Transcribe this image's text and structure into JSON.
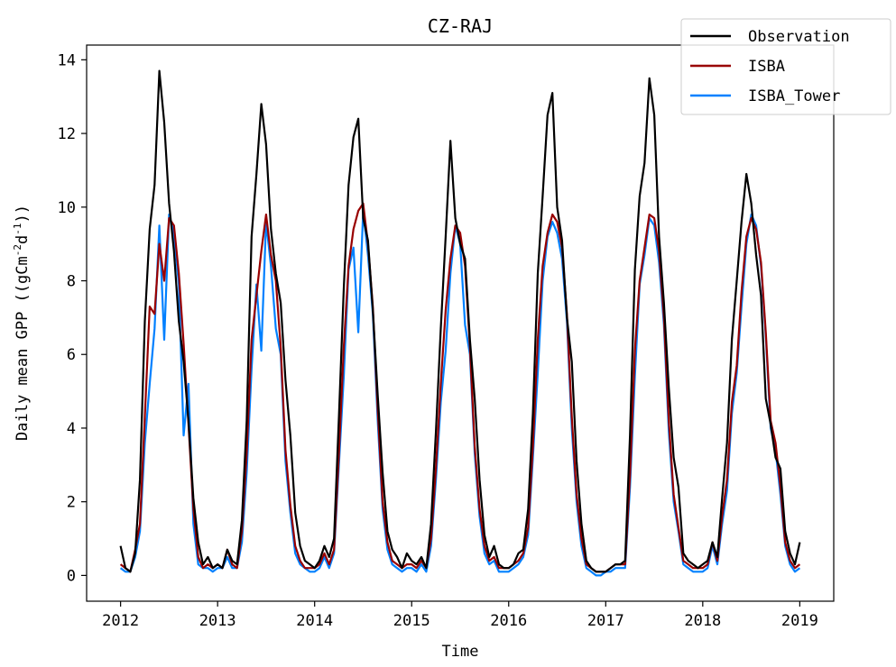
{
  "chart_data": {
    "type": "line",
    "title": "CZ-RAJ",
    "xlabel": "Time",
    "ylabel": "Daily mean GPP ((gCm",
    "ylabel_unit_parts": [
      "-2",
      "d",
      "-1",
      "))"
    ],
    "xlim": [
      2011.65,
      2019.35
    ],
    "ylim": [
      -0.7,
      14.4
    ],
    "x_ticks": [
      "2012",
      "2013",
      "2014",
      "2015",
      "2016",
      "2017",
      "2018",
      "2019"
    ],
    "y_ticks": [
      "0",
      "2",
      "4",
      "6",
      "8",
      "10",
      "12",
      "14"
    ],
    "legend_position": "top-right",
    "series": [
      {
        "name": "Observation",
        "color": "#000000",
        "x": [
          2012.0,
          2012.05,
          2012.1,
          2012.15,
          2012.2,
          2012.25,
          2012.3,
          2012.35,
          2012.4,
          2012.45,
          2012.5,
          2012.55,
          2012.6,
          2012.65,
          2012.7,
          2012.75,
          2012.8,
          2012.85,
          2012.9,
          2012.95,
          2013.0,
          2013.05,
          2013.1,
          2013.15,
          2013.2,
          2013.25,
          2013.3,
          2013.35,
          2013.4,
          2013.45,
          2013.5,
          2013.55,
          2013.6,
          2013.65,
          2013.7,
          2013.75,
          2013.8,
          2013.85,
          2013.9,
          2013.95,
          2014.0,
          2014.05,
          2014.1,
          2014.15,
          2014.2,
          2014.25,
          2014.3,
          2014.35,
          2014.4,
          2014.45,
          2014.5,
          2014.55,
          2014.6,
          2014.65,
          2014.7,
          2014.75,
          2014.8,
          2014.85,
          2014.9,
          2014.95,
          2015.0,
          2015.05,
          2015.1,
          2015.15,
          2015.2,
          2015.25,
          2015.3,
          2015.35,
          2015.4,
          2015.45,
          2015.5,
          2015.55,
          2015.6,
          2015.65,
          2015.7,
          2015.75,
          2015.8,
          2015.85,
          2015.9,
          2015.95,
          2016.0,
          2016.05,
          2016.1,
          2016.15,
          2016.2,
          2016.25,
          2016.3,
          2016.35,
          2016.4,
          2016.45,
          2016.5,
          2016.55,
          2016.6,
          2016.65,
          2016.7,
          2016.75,
          2016.8,
          2016.85,
          2016.9,
          2016.95,
          2017.0,
          2017.05,
          2017.1,
          2017.15,
          2017.2,
          2017.25,
          2017.3,
          2017.35,
          2017.4,
          2017.45,
          2017.5,
          2017.55,
          2017.6,
          2017.65,
          2017.7,
          2017.75,
          2017.8,
          2017.85,
          2017.9,
          2017.95,
          2018.0,
          2018.05,
          2018.1,
          2018.15,
          2018.2,
          2018.25,
          2018.3,
          2018.35,
          2018.4,
          2018.45,
          2018.5,
          2018.55,
          2018.6,
          2018.65,
          2018.7,
          2018.75,
          2018.8,
          2018.85,
          2018.9,
          2018.95,
          2019.0
        ],
        "y": [
          0.8,
          0.2,
          0.1,
          0.6,
          2.6,
          6.9,
          9.4,
          10.6,
          13.7,
          12.3,
          10.1,
          8.8,
          6.9,
          5.8,
          4.2,
          2.1,
          0.9,
          0.3,
          0.5,
          0.2,
          0.3,
          0.2,
          0.7,
          0.4,
          0.3,
          1.5,
          4.2,
          9.2,
          10.9,
          12.8,
          11.7,
          9.4,
          8.2,
          7.4,
          5.3,
          3.8,
          1.7,
          0.8,
          0.4,
          0.3,
          0.2,
          0.4,
          0.8,
          0.5,
          1.0,
          4.3,
          7.8,
          10.6,
          11.9,
          12.4,
          9.7,
          9.1,
          7.2,
          4.9,
          2.8,
          1.2,
          0.7,
          0.5,
          0.2,
          0.6,
          0.4,
          0.3,
          0.5,
          0.2,
          1.4,
          3.9,
          6.7,
          9.2,
          11.8,
          9.7,
          9.0,
          8.6,
          6.4,
          4.8,
          2.6,
          1.1,
          0.5,
          0.8,
          0.3,
          0.2,
          0.2,
          0.3,
          0.6,
          0.7,
          1.8,
          4.4,
          8.2,
          10.3,
          12.5,
          13.1,
          10.0,
          9.1,
          7.0,
          5.8,
          3.1,
          1.4,
          0.4,
          0.2,
          0.1,
          0.1,
          0.1,
          0.2,
          0.3,
          0.3,
          0.4,
          3.8,
          8.3,
          10.3,
          11.2,
          13.5,
          12.5,
          9.2,
          7.4,
          5.1,
          3.2,
          2.4,
          0.6,
          0.4,
          0.3,
          0.2,
          0.3,
          0.4,
          0.9,
          0.5,
          2.1,
          3.6,
          6.4,
          8.0,
          9.6,
          10.9,
          10.1,
          8.7,
          7.6,
          4.8,
          4.1,
          3.2,
          2.9,
          1.2,
          0.6,
          0.3,
          0.9
        ]
      },
      {
        "name": "ISBA",
        "color": "#990000",
        "x": [
          2012.0,
          2012.05,
          2012.1,
          2012.15,
          2012.2,
          2012.25,
          2012.3,
          2012.35,
          2012.4,
          2012.45,
          2012.5,
          2012.55,
          2012.6,
          2012.65,
          2012.7,
          2012.75,
          2012.8,
          2012.85,
          2012.9,
          2012.95,
          2013.0,
          2013.05,
          2013.1,
          2013.15,
          2013.2,
          2013.25,
          2013.3,
          2013.35,
          2013.4,
          2013.45,
          2013.5,
          2013.55,
          2013.6,
          2013.65,
          2013.7,
          2013.75,
          2013.8,
          2013.85,
          2013.9,
          2013.95,
          2014.0,
          2014.05,
          2014.1,
          2014.15,
          2014.2,
          2014.25,
          2014.3,
          2014.35,
          2014.4,
          2014.45,
          2014.5,
          2014.55,
          2014.6,
          2014.65,
          2014.7,
          2014.75,
          2014.8,
          2014.85,
          2014.9,
          2014.95,
          2015.0,
          2015.05,
          2015.1,
          2015.15,
          2015.2,
          2015.25,
          2015.3,
          2015.35,
          2015.4,
          2015.45,
          2015.5,
          2015.55,
          2015.6,
          2015.65,
          2015.7,
          2015.75,
          2015.8,
          2015.85,
          2015.9,
          2015.95,
          2016.0,
          2016.05,
          2016.1,
          2016.15,
          2016.2,
          2016.25,
          2016.3,
          2016.35,
          2016.4,
          2016.45,
          2016.5,
          2016.55,
          2016.6,
          2016.65,
          2016.7,
          2016.75,
          2016.8,
          2016.85,
          2016.9,
          2016.95,
          2017.0,
          2017.05,
          2017.1,
          2017.15,
          2017.2,
          2017.25,
          2017.3,
          2017.35,
          2017.4,
          2017.45,
          2017.5,
          2017.55,
          2017.6,
          2017.65,
          2017.7,
          2017.75,
          2017.8,
          2017.85,
          2017.9,
          2017.95,
          2018.0,
          2018.05,
          2018.1,
          2018.15,
          2018.2,
          2018.25,
          2018.3,
          2018.35,
          2018.4,
          2018.45,
          2018.5,
          2018.55,
          2018.6,
          2018.65,
          2018.7,
          2018.75,
          2018.8,
          2018.85,
          2018.9,
          2018.95,
          2019.0
        ],
        "y": [
          0.3,
          0.2,
          0.1,
          0.7,
          1.4,
          4.3,
          7.3,
          7.1,
          9.0,
          8.0,
          9.7,
          9.5,
          8.2,
          6.3,
          4.1,
          1.8,
          0.5,
          0.2,
          0.3,
          0.2,
          0.3,
          0.2,
          0.7,
          0.3,
          0.2,
          1.2,
          3.3,
          6.4,
          7.6,
          8.8,
          9.8,
          8.7,
          8.0,
          6.2,
          3.4,
          1.9,
          0.8,
          0.4,
          0.2,
          0.2,
          0.2,
          0.3,
          0.6,
          0.3,
          0.7,
          3.3,
          6.2,
          8.4,
          9.4,
          9.9,
          10.1,
          9.0,
          7.3,
          4.5,
          2.0,
          0.9,
          0.4,
          0.3,
          0.2,
          0.3,
          0.3,
          0.2,
          0.4,
          0.2,
          1.0,
          2.9,
          5.2,
          7.2,
          8.6,
          9.5,
          9.3,
          8.4,
          6.2,
          3.5,
          1.8,
          0.8,
          0.4,
          0.5,
          0.2,
          0.2,
          0.2,
          0.3,
          0.4,
          0.6,
          1.3,
          3.5,
          6.4,
          8.4,
          9.3,
          9.8,
          9.6,
          8.9,
          7.1,
          4.3,
          2.2,
          1.0,
          0.3,
          0.2,
          0.1,
          0.1,
          0.1,
          0.2,
          0.3,
          0.3,
          0.3,
          2.7,
          6.1,
          8.0,
          8.9,
          9.8,
          9.7,
          8.8,
          7.0,
          4.2,
          2.2,
          1.3,
          0.4,
          0.3,
          0.2,
          0.2,
          0.2,
          0.3,
          0.9,
          0.4,
          1.6,
          2.6,
          4.7,
          5.7,
          7.7,
          9.2,
          9.7,
          9.4,
          8.5,
          6.6,
          4.2,
          3.6,
          2.4,
          0.9,
          0.4,
          0.2,
          0.3
        ]
      },
      {
        "name": "ISBA_Tower",
        "color": "#0080ff",
        "x": [
          2012.0,
          2012.05,
          2012.1,
          2012.15,
          2012.2,
          2012.25,
          2012.3,
          2012.35,
          2012.4,
          2012.45,
          2012.5,
          2012.55,
          2012.6,
          2012.65,
          2012.7,
          2012.75,
          2012.8,
          2012.85,
          2012.9,
          2012.95,
          2013.0,
          2013.05,
          2013.1,
          2013.15,
          2013.2,
          2013.25,
          2013.3,
          2013.35,
          2013.4,
          2013.45,
          2013.5,
          2013.55,
          2013.6,
          2013.65,
          2013.7,
          2013.75,
          2013.8,
          2013.85,
          2013.9,
          2013.95,
          2014.0,
          2014.05,
          2014.1,
          2014.15,
          2014.2,
          2014.25,
          2014.3,
          2014.35,
          2014.4,
          2014.45,
          2014.5,
          2014.55,
          2014.6,
          2014.65,
          2014.7,
          2014.75,
          2014.8,
          2014.85,
          2014.9,
          2014.95,
          2015.0,
          2015.05,
          2015.1,
          2015.15,
          2015.2,
          2015.25,
          2015.3,
          2015.35,
          2015.4,
          2015.45,
          2015.5,
          2015.55,
          2015.6,
          2015.65,
          2015.7,
          2015.75,
          2015.8,
          2015.85,
          2015.9,
          2015.95,
          2016.0,
          2016.05,
          2016.1,
          2016.15,
          2016.2,
          2016.25,
          2016.3,
          2016.35,
          2016.4,
          2016.45,
          2016.5,
          2016.55,
          2016.6,
          2016.65,
          2016.7,
          2016.75,
          2016.8,
          2016.85,
          2016.9,
          2016.95,
          2017.0,
          2017.05,
          2017.1,
          2017.15,
          2017.2,
          2017.25,
          2017.3,
          2017.35,
          2017.4,
          2017.45,
          2017.5,
          2017.55,
          2017.6,
          2017.65,
          2017.7,
          2017.75,
          2017.8,
          2017.85,
          2017.9,
          2017.95,
          2018.0,
          2018.05,
          2018.1,
          2018.15,
          2018.2,
          2018.25,
          2018.3,
          2018.35,
          2018.4,
          2018.45,
          2018.5,
          2018.55,
          2018.6,
          2018.65,
          2018.7,
          2018.75,
          2018.8,
          2018.85,
          2018.9,
          2018.95,
          2019.0
        ],
        "y": [
          0.2,
          0.1,
          0.1,
          0.5,
          1.2,
          3.6,
          5.2,
          6.7,
          9.5,
          6.4,
          9.8,
          9.3,
          7.9,
          3.8,
          5.2,
          1.4,
          0.3,
          0.2,
          0.2,
          0.1,
          0.2,
          0.2,
          0.5,
          0.2,
          0.2,
          0.9,
          2.8,
          5.6,
          7.9,
          6.1,
          9.6,
          8.4,
          6.7,
          6.0,
          3.1,
          1.7,
          0.6,
          0.3,
          0.2,
          0.1,
          0.1,
          0.2,
          0.5,
          0.2,
          0.6,
          3.0,
          5.4,
          8.3,
          8.9,
          6.6,
          9.9,
          8.7,
          7.1,
          4.2,
          1.8,
          0.7,
          0.3,
          0.2,
          0.1,
          0.2,
          0.2,
          0.1,
          0.3,
          0.1,
          0.8,
          2.6,
          4.7,
          6.1,
          8.2,
          9.5,
          9.0,
          6.8,
          6.0,
          3.3,
          1.6,
          0.6,
          0.3,
          0.4,
          0.1,
          0.1,
          0.1,
          0.2,
          0.3,
          0.5,
          1.1,
          3.2,
          5.5,
          8.0,
          9.2,
          9.6,
          9.3,
          8.6,
          6.9,
          4.0,
          2.0,
          0.8,
          0.2,
          0.1,
          0.0,
          0.0,
          0.1,
          0.1,
          0.2,
          0.2,
          0.2,
          2.4,
          5.4,
          7.9,
          8.7,
          9.7,
          9.5,
          8.5,
          6.8,
          3.9,
          2.0,
          1.2,
          0.3,
          0.2,
          0.1,
          0.1,
          0.1,
          0.2,
          0.8,
          0.3,
          1.4,
          2.3,
          4.4,
          5.5,
          7.3,
          9.0,
          9.8,
          9.5,
          8.4,
          6.5,
          4.0,
          3.4,
          2.2,
          0.8,
          0.3,
          0.1,
          0.2
        ]
      }
    ]
  }
}
